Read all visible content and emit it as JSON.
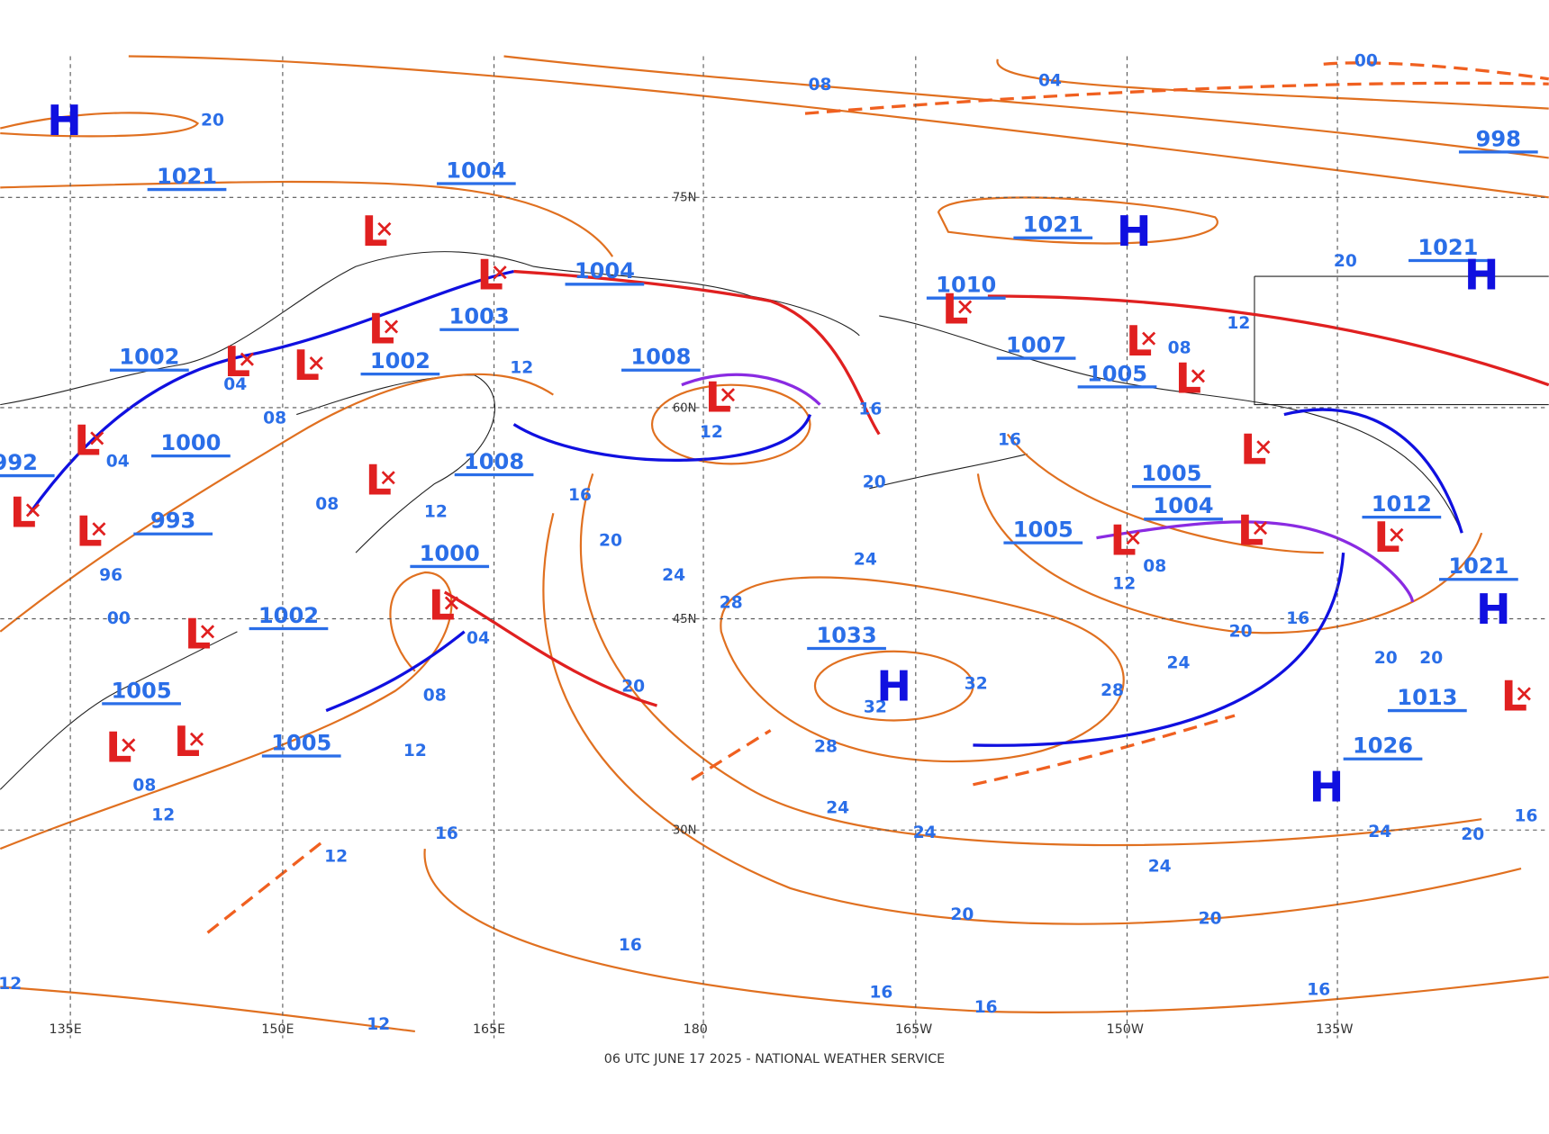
{
  "footer": "06 UTC JUNE 17 2025 - NATIONAL WEATHER SERVICE",
  "lat_labels": [
    "75N",
    "60N",
    "45N",
    "30N"
  ],
  "lon_labels": [
    "135E",
    "150E",
    "165E",
    "180",
    "165W",
    "150W",
    "135W"
  ],
  "high_centers": [
    "H",
    "H",
    "H",
    "H",
    "H",
    "H"
  ],
  "low_centers": [
    "L",
    "L",
    "L",
    "L",
    "L",
    "L",
    "L",
    "L",
    "L",
    "L",
    "L",
    "L",
    "L",
    "L",
    "L",
    "L",
    "L",
    "L",
    "L",
    "L",
    "L",
    "L"
  ],
  "pressure_labels": [
    "1021",
    "1004",
    "1004",
    "1003",
    "1002",
    "1002",
    "1008",
    "1000",
    "1008",
    "992",
    "993",
    "1000",
    "1002",
    "1005",
    "1005",
    "1033",
    "1021",
    "1010",
    "1007",
    "1005",
    "1005",
    "1004",
    "1005",
    "1012",
    "1021",
    "998",
    "1021",
    "1013",
    "1026"
  ],
  "isobar_labels": [
    "20",
    "08",
    "04",
    "00",
    "12",
    "12",
    "16",
    "20",
    "24",
    "24",
    "28",
    "32",
    "32",
    "28",
    "24",
    "24",
    "28",
    "24",
    "20",
    "16",
    "20",
    "20",
    "16",
    "12",
    "08",
    "08",
    "12",
    "20",
    "16",
    "20",
    "20",
    "12",
    "08",
    "04",
    "08",
    "12",
    "12",
    "08",
    "12",
    "16",
    "16",
    "16",
    "16",
    "16",
    "20",
    "20",
    "24",
    "24",
    "20",
    "16",
    "12",
    "12",
    "96",
    "00",
    "04",
    "08",
    "04"
  ]
}
